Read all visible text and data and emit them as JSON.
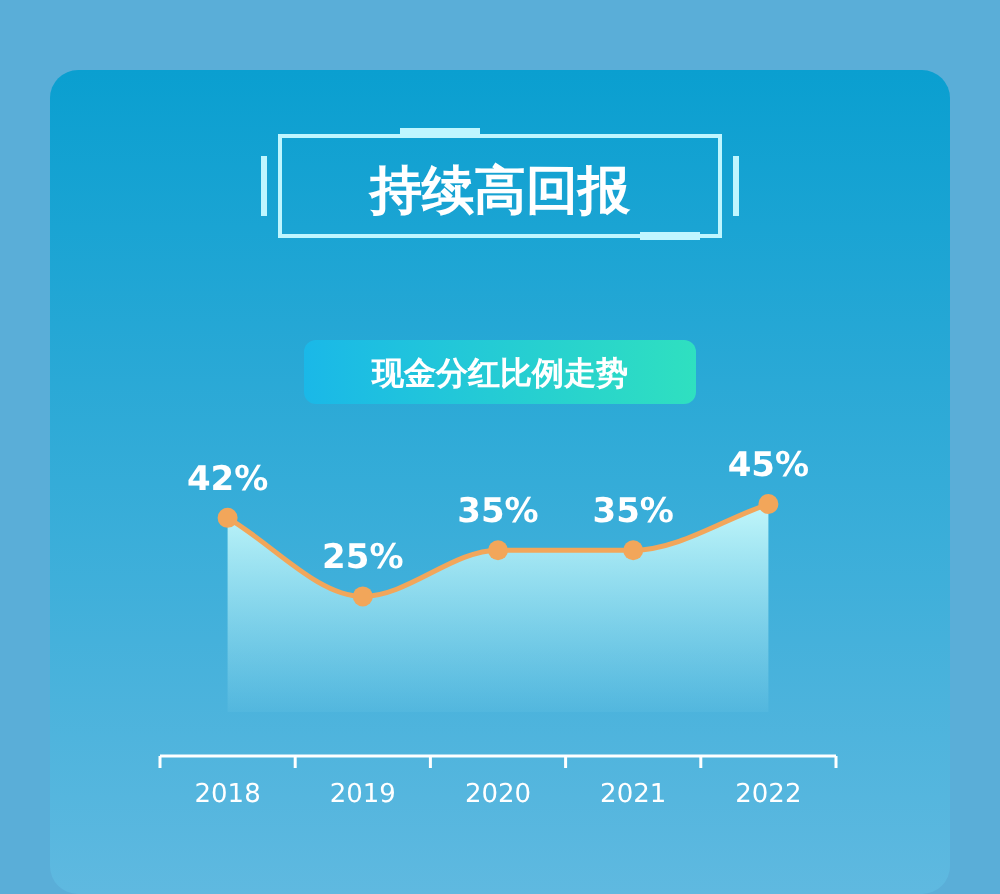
{
  "chart_data": {
    "type": "area",
    "title": "持续高回报",
    "subtitle": "现金分红比例走势",
    "categories": [
      "2018",
      "2019",
      "2020",
      "2021",
      "2022"
    ],
    "values": [
      42,
      25,
      35,
      35,
      45
    ],
    "value_labels": [
      "42%",
      "25%",
      "35%",
      "35%",
      "45%"
    ],
    "color": "#f2a65a",
    "marker": "circle",
    "line_style": "solid"
  }
}
